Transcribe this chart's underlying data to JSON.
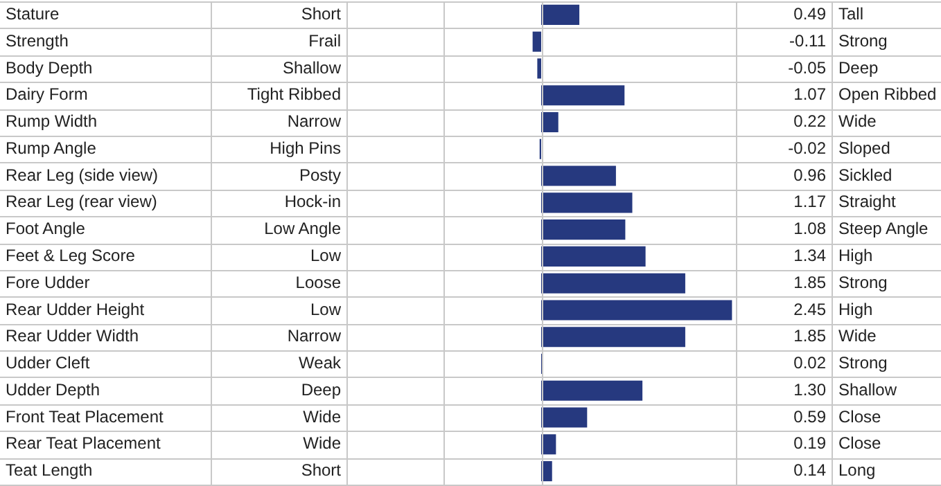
{
  "chart_data": {
    "type": "bar",
    "orientation": "horizontal",
    "categories": [
      "Stature",
      "Strength",
      "Body Depth",
      "Dairy Form",
      "Rump Width",
      "Rump Angle",
      "Rear Leg (side view)",
      "Rear Leg (rear view)",
      "Foot Angle",
      "Feet & Leg Score",
      "Fore Udder",
      "Rear Udder Height",
      "Rear Udder Width",
      "Udder Cleft",
      "Udder Depth",
      "Front Teat Placement",
      "Rear Teat Placement",
      "Teat Length"
    ],
    "values": [
      0.49,
      -0.11,
      -0.05,
      1.07,
      0.22,
      -0.02,
      0.96,
      1.17,
      1.08,
      1.34,
      1.85,
      2.45,
      1.85,
      0.02,
      1.3,
      0.59,
      0.19,
      0.14
    ],
    "value_labels": [
      "0.49",
      "-0.11",
      "-0.05",
      "1.07",
      "0.22",
      "-0.02",
      "0.96",
      "1.17",
      "1.08",
      "1.34",
      "1.85",
      "2.45",
      "1.85",
      "0.02",
      "1.30",
      "0.59",
      "0.19",
      "0.14"
    ],
    "color": "#26397f",
    "xlim": [
      -2.5,
      2.5
    ],
    "annotations": [
      "Short",
      "Tall",
      "Frail",
      "Strong",
      "Shallow",
      "Deep",
      "Tight Ribbed",
      "Open Ribbed",
      "Narrow",
      "Wide",
      "High Pins",
      "Sloped",
      "Posty",
      "Sickled",
      "Hock-in",
      "Straight",
      "Low Angle",
      "Steep Angle",
      "Low",
      "High",
      "Loose",
      "Strong",
      "Low",
      "High",
      "Narrow",
      "Wide",
      "Weak",
      "Strong",
      "Deep",
      "Shallow",
      "Wide",
      "Close",
      "Wide",
      "Close",
      "Short",
      "Long"
    ]
  }
}
